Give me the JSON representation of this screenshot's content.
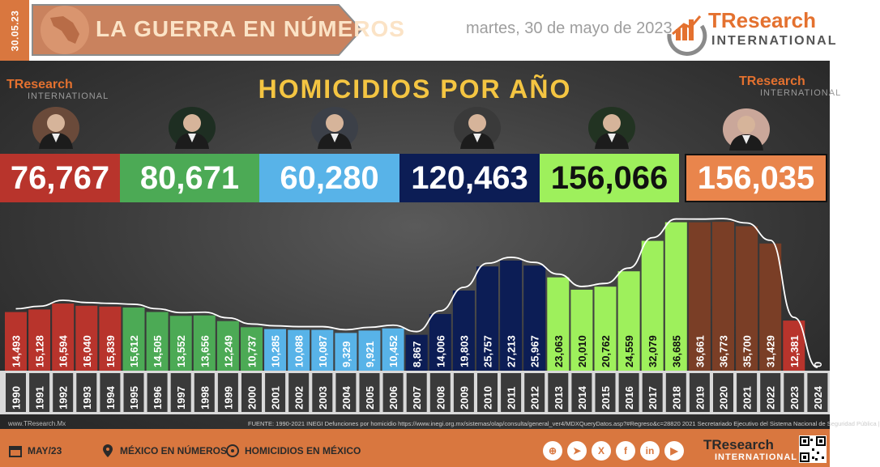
{
  "header": {
    "date_tab": "30.05.23",
    "title": "LA GUERRA EN NÚMEROS",
    "date": "martes, 30 de mayo de 2023",
    "logo_main": "TResearch",
    "logo_sub": "INTERNATIONAL"
  },
  "main": {
    "logo_main": "TResearch",
    "logo_sub": "INTERNATIONAL"
  },
  "colors": {
    "salinas": "#b8342c",
    "zedillo": "#4caa55",
    "fox": "#58b3e8",
    "calderon": "#0c1d55",
    "pena": "#9ef05c",
    "amlo": "#7a3e26",
    "amlo_box": "#e9854c",
    "gold": "#f4c542"
  },
  "totals": [
    {
      "value": "76,767",
      "color": "#b8342c"
    },
    {
      "value": "80,671",
      "color": "#4caa55"
    },
    {
      "value": "60,280",
      "color": "#58b3e8"
    },
    {
      "value": "120,463",
      "color": "#0c1d55"
    },
    {
      "value": "156,066",
      "color": "#9ef05c"
    },
    {
      "value": "156,035",
      "color": "#e9854c"
    }
  ],
  "chart_data": {
    "type": "bar",
    "title": "HOMICIDIOS POR AÑO",
    "categories": [
      "1990",
      "1991",
      "1992",
      "1993",
      "1994",
      "1995",
      "1996",
      "1997",
      "1998",
      "1999",
      "2000",
      "2001",
      "2002",
      "2003",
      "2004",
      "2005",
      "2006",
      "2007",
      "2008",
      "2009",
      "2010",
      "2011",
      "2012",
      "2013",
      "2014",
      "2015",
      "2016",
      "2017",
      "2018",
      "2019",
      "2020",
      "2021",
      "2022",
      "2023",
      "2024"
    ],
    "values": [
      14493,
      15128,
      16594,
      16040,
      15839,
      15612,
      14505,
      13552,
      13656,
      12249,
      10737,
      10285,
      10088,
      10087,
      9329,
      9921,
      10452,
      8867,
      14006,
      19803,
      25757,
      27213,
      25967,
      23063,
      20010,
      20762,
      24559,
      32079,
      36685,
      36661,
      36773,
      35700,
      31429,
      12381,
      0
    ],
    "value_labels": [
      "14,493",
      "15,128",
      "16,594",
      "16,040",
      "15,839",
      "15,612",
      "14,505",
      "13,552",
      "13,656",
      "12,249",
      "10,737",
      "10,285",
      "10,088",
      "10,087",
      "9,329",
      "9,921",
      "10,452",
      "8,867",
      "14,006",
      "19,803",
      "25,757",
      "27,213",
      "25,967",
      "23,063",
      "20,010",
      "20,762",
      "24,559",
      "32,079",
      "36,685",
      "36,661",
      "36,773",
      "35,700",
      "31,429",
      "12,381",
      "0"
    ],
    "bar_colors": [
      "#b8342c",
      "#b8342c",
      "#b8342c",
      "#b8342c",
      "#b8342c",
      "#4caa55",
      "#4caa55",
      "#4caa55",
      "#4caa55",
      "#4caa55",
      "#4caa55",
      "#58b3e8",
      "#58b3e8",
      "#58b3e8",
      "#58b3e8",
      "#58b3e8",
      "#58b3e8",
      "#0c1d55",
      "#0c1d55",
      "#0c1d55",
      "#0c1d55",
      "#0c1d55",
      "#0c1d55",
      "#9ef05c",
      "#9ef05c",
      "#9ef05c",
      "#9ef05c",
      "#9ef05c",
      "#9ef05c",
      "#7a3e26",
      "#7a3e26",
      "#7a3e26",
      "#7a3e26",
      "#b8342c",
      "#b8342c"
    ],
    "label_colors": [
      "#ffffff",
      "#ffffff",
      "#ffffff",
      "#ffffff",
      "#ffffff",
      "#ffffff",
      "#ffffff",
      "#ffffff",
      "#ffffff",
      "#ffffff",
      "#ffffff",
      "#ffffff",
      "#ffffff",
      "#ffffff",
      "#ffffff",
      "#ffffff",
      "#ffffff",
      "#ffffff",
      "#ffffff",
      "#ffffff",
      "#ffffff",
      "#ffffff",
      "#ffffff",
      "#111111",
      "#111111",
      "#111111",
      "#111111",
      "#111111",
      "#111111",
      "#ffffff",
      "#ffffff",
      "#ffffff",
      "#ffffff",
      "#ffffff",
      "#ffffff"
    ],
    "trend_line": true,
    "ylim": [
      0,
      40000
    ],
    "legend": "none",
    "grid": false
  },
  "sources": {
    "left": "www.TResearch.Mx",
    "right": "FUENTE: 1990-2021 INEGI Defunciones por homicidio https://www.inegi.org.mx/sistemas/olap/consulta/general_ver4/MDXQueryDatos.asp?#Regreso&c=28820   2021 Secretariado Ejecutivo del Sistema Nacional de Seguridad Pública |"
  },
  "footer": {
    "item1": "MAY/23",
    "item2": "MÉXICO EN NÚMEROS",
    "item3": "HOMICIDIOS EN MÉXICO",
    "social_icons": [
      "globe-icon",
      "telegram-icon",
      "x-icon",
      "facebook-icon",
      "linkedin-icon",
      "youtube-icon"
    ],
    "social_glyphs": [
      "⊕",
      "➤",
      "X",
      "f",
      "in",
      "▶"
    ],
    "logo_main": "TResearch",
    "logo_sub": "INTERNATIONAL"
  }
}
